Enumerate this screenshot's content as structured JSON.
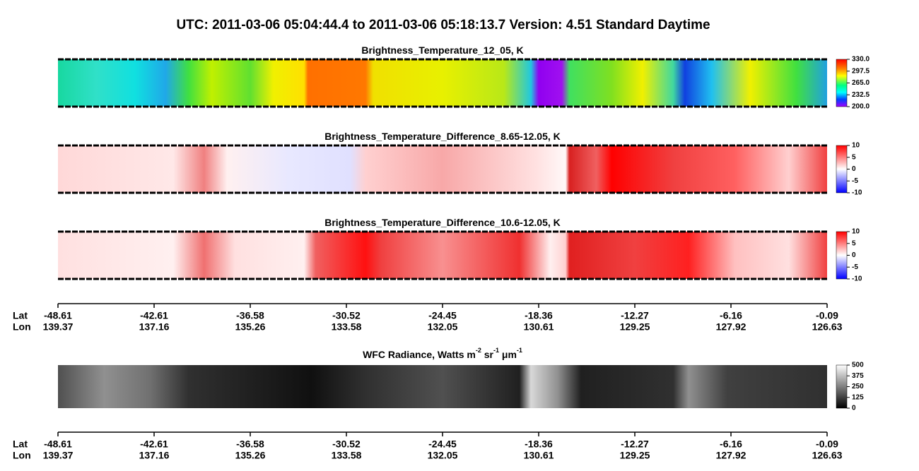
{
  "title": "UTC:  2011-03-06   05:04:44.4  to  2011-03-06   05:18:13.7    Version: 4.51  Standard Daytime",
  "panels": [
    {
      "title": [
        "Brightness_Temperature_12_05, K"
      ],
      "colorbar": [
        "330.0",
        "297.5",
        "265.0",
        "232.5",
        "200.0"
      ]
    },
    {
      "title": [
        "Brightness_Temperature_Difference_8.65-12.05, K"
      ],
      "colorbar": [
        "10",
        "5",
        "0",
        "-5",
        "-10"
      ]
    },
    {
      "title": [
        "Brightness_Temperature_Difference_10.6-12.05, K"
      ],
      "colorbar": [
        "10",
        "5",
        "0",
        "-5",
        "-10"
      ]
    },
    {
      "title": [
        "WFC Radiance, Watts m",
        "-2",
        " sr",
        "-1",
        " μm",
        "-1"
      ],
      "colorbar": [
        "500",
        "375",
        "250",
        "125",
        "0"
      ]
    }
  ],
  "axes": [
    {
      "lat_label": "Lat",
      "lon_label": "Lon",
      "lat": [
        "-48.61",
        "-42.61",
        "-36.58",
        "-30.52",
        "-24.45",
        "-18.36",
        "-12.27",
        "-6.16",
        "-0.09"
      ],
      "lon": [
        "139.37",
        "137.16",
        "135.26",
        "133.58",
        "132.05",
        "130.61",
        "129.25",
        "127.92",
        "126.63"
      ]
    },
    {
      "lat_label": "Lat",
      "lon_label": "Lon",
      "lat": [
        "-48.61",
        "-42.61",
        "-36.58",
        "-30.52",
        "-24.45",
        "-18.36",
        "-12.27",
        "-6.16",
        "-0.09"
      ],
      "lon": [
        "139.37",
        "137.16",
        "135.26",
        "133.58",
        "132.05",
        "130.61",
        "129.25",
        "127.92",
        "126.63"
      ]
    }
  ]
}
